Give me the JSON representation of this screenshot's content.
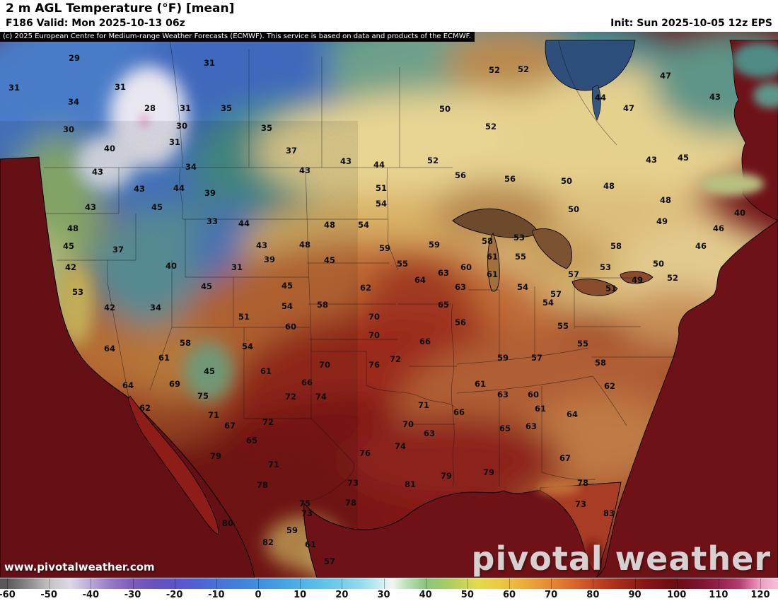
{
  "header": {
    "title": "2 m AGL Temperature (°F) [mean]",
    "valid": "F186 Valid: Mon 2025-10-13 06z",
    "init": "Init: Sun 2025-10-05 12z EPS",
    "copyright": "(c) 2025 European Centre for Medium-range Weather Forecasts (ECMWF). This service is based on data and products of the ECMWF."
  },
  "watermark": {
    "site": "www.pivotalweather.com",
    "brand": "pivotal weather"
  },
  "colorbar": {
    "unit": "°F",
    "range": [
      -60,
      120
    ],
    "ticks": [
      -60,
      -50,
      -40,
      -30,
      -20,
      -10,
      0,
      10,
      20,
      30,
      40,
      50,
      60,
      70,
      80,
      90,
      100,
      110,
      120
    ]
  },
  "chart_data": {
    "type": "heatmap",
    "title": "2 m AGL Temperature (°F) [mean]",
    "model": "EPS",
    "forecast_hour": "F186",
    "valid_time": "Mon 2025-10-13 06z",
    "init_time": "Sun 2025-10-05 12z",
    "scale_range_f": [
      -60,
      120
    ],
    "stations": [
      [
        29,
        105,
        86
      ],
      [
        31,
        296,
        93
      ],
      [
        52,
        740,
        102
      ],
      [
        52,
        699,
        103
      ],
      [
        47,
        941,
        111
      ],
      [
        31,
        20,
        128
      ],
      [
        31,
        170,
        127
      ],
      [
        43,
        1011,
        141
      ],
      [
        44,
        849,
        142
      ],
      [
        34,
        104,
        148
      ],
      [
        28,
        212,
        157
      ],
      [
        31,
        262,
        157
      ],
      [
        35,
        320,
        157
      ],
      [
        47,
        889,
        157
      ],
      [
        50,
        629,
        158
      ],
      [
        30,
        97,
        187
      ],
      [
        30,
        257,
        182
      ],
      [
        35,
        377,
        185
      ],
      [
        52,
        694,
        183
      ],
      [
        31,
        247,
        205
      ],
      [
        40,
        155,
        214
      ],
      [
        37,
        412,
        217
      ],
      [
        45,
        966,
        227
      ],
      [
        43,
        921,
        230
      ],
      [
        52,
        612,
        231
      ],
      [
        43,
        489,
        232
      ],
      [
        44,
        536,
        237
      ],
      [
        34,
        270,
        240
      ],
      [
        43,
        431,
        245
      ],
      [
        43,
        138,
        247
      ],
      [
        56,
        651,
        252
      ],
      [
        56,
        721,
        257
      ],
      [
        50,
        801,
        260
      ],
      [
        48,
        861,
        267
      ],
      [
        43,
        197,
        271
      ],
      [
        44,
        253,
        270
      ],
      [
        51,
        539,
        270
      ],
      [
        39,
        297,
        277
      ],
      [
        48,
        941,
        287
      ],
      [
        54,
        539,
        292
      ],
      [
        43,
        128,
        297
      ],
      [
        45,
        222,
        297
      ],
      [
        50,
        811,
        300
      ],
      [
        40,
        1046,
        305
      ],
      [
        33,
        300,
        317
      ],
      [
        49,
        936,
        317
      ],
      [
        48,
        103,
        327
      ],
      [
        44,
        345,
        320
      ],
      [
        48,
        466,
        322
      ],
      [
        54,
        514,
        322
      ],
      [
        46,
        1016,
        327
      ],
      [
        53,
        734,
        340
      ],
      [
        58,
        689,
        345
      ],
      [
        48,
        431,
        350
      ],
      [
        59,
        614,
        350
      ],
      [
        43,
        370,
        351
      ],
      [
        45,
        97,
        352
      ],
      [
        46,
        991,
        352
      ],
      [
        58,
        871,
        352
      ],
      [
        59,
        544,
        355
      ],
      [
        37,
        167,
        357
      ],
      [
        55,
        736,
        367
      ],
      [
        61,
        696,
        367
      ],
      [
        39,
        381,
        371
      ],
      [
        45,
        466,
        372
      ],
      [
        50,
        931,
        377
      ],
      [
        55,
        569,
        377
      ],
      [
        42,
        100,
        382
      ],
      [
        40,
        242,
        380
      ],
      [
        31,
        335,
        382
      ],
      [
        60,
        659,
        382
      ],
      [
        53,
        856,
        382
      ],
      [
        63,
        627,
        390
      ],
      [
        61,
        696,
        392
      ],
      [
        57,
        811,
        392
      ],
      [
        52,
        951,
        397
      ],
      [
        64,
        594,
        400
      ],
      [
        49,
        901,
        400
      ],
      [
        45,
        292,
        409
      ],
      [
        45,
        406,
        408
      ],
      [
        63,
        651,
        410
      ],
      [
        54,
        739,
        410
      ],
      [
        62,
        517,
        411
      ],
      [
        51,
        864,
        412
      ],
      [
        53,
        110,
        417
      ],
      [
        57,
        786,
        420
      ],
      [
        54,
        775,
        432
      ],
      [
        65,
        627,
        435
      ],
      [
        58,
        456,
        435
      ],
      [
        54,
        406,
        437
      ],
      [
        42,
        155,
        439
      ],
      [
        34,
        220,
        439
      ],
      [
        70,
        529,
        452
      ],
      [
        51,
        345,
        452
      ],
      [
        56,
        651,
        460
      ],
      [
        55,
        796,
        465
      ],
      [
        60,
        411,
        466
      ],
      [
        70,
        529,
        478
      ],
      [
        66,
        601,
        487
      ],
      [
        58,
        262,
        489
      ],
      [
        55,
        824,
        490
      ],
      [
        64,
        155,
        497
      ],
      [
        54,
        350,
        494
      ],
      [
        61,
        232,
        510
      ],
      [
        59,
        711,
        510
      ],
      [
        57,
        759,
        510
      ],
      [
        72,
        559,
        512
      ],
      [
        58,
        849,
        517
      ],
      [
        76,
        529,
        520
      ],
      [
        70,
        459,
        520
      ],
      [
        45,
        296,
        529
      ],
      [
        61,
        376,
        529
      ],
      [
        66,
        434,
        545
      ],
      [
        69,
        247,
        547
      ],
      [
        61,
        679,
        547
      ],
      [
        64,
        181,
        549
      ],
      [
        62,
        862,
        550
      ],
      [
        74,
        454,
        565
      ],
      [
        72,
        411,
        565
      ],
      [
        75,
        287,
        564
      ],
      [
        63,
        711,
        562
      ],
      [
        60,
        754,
        562
      ],
      [
        71,
        599,
        577
      ],
      [
        62,
        205,
        581
      ],
      [
        61,
        764,
        582
      ],
      [
        66,
        649,
        587
      ],
      [
        64,
        809,
        590
      ],
      [
        71,
        302,
        591
      ],
      [
        72,
        379,
        601
      ],
      [
        70,
        577,
        604
      ],
      [
        67,
        325,
        606
      ],
      [
        63,
        751,
        607
      ],
      [
        65,
        714,
        610
      ],
      [
        63,
        607,
        617
      ],
      [
        65,
        356,
        627
      ],
      [
        74,
        566,
        635
      ],
      [
        76,
        516,
        645
      ],
      [
        79,
        305,
        649
      ],
      [
        67,
        799,
        652
      ],
      [
        71,
        387,
        661
      ],
      [
        79,
        691,
        672
      ],
      [
        79,
        631,
        677
      ],
      [
        73,
        499,
        687
      ],
      [
        81,
        580,
        689
      ],
      [
        78,
        371,
        690
      ],
      [
        78,
        824,
        687
      ],
      [
        78,
        496,
        715
      ],
      [
        75,
        431,
        716
      ],
      [
        73,
        821,
        717
      ],
      [
        73,
        434,
        730
      ],
      [
        83,
        861,
        730
      ],
      [
        80,
        322,
        744
      ],
      [
        59,
        413,
        754
      ],
      [
        82,
        379,
        771
      ],
      [
        61,
        439,
        774
      ],
      [
        57,
        466,
        798
      ]
    ]
  }
}
